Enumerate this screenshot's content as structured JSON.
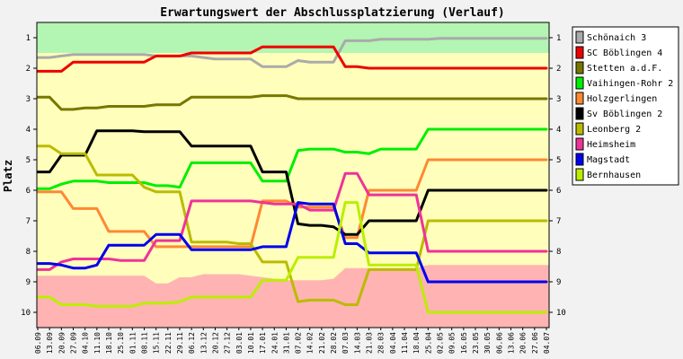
{
  "chart_data": {
    "type": "line",
    "title": "Erwartungswert der Abschlussplatzierung (Verlauf)",
    "ylabel": "Platz",
    "xlabel": "",
    "ylim": [
      0.5,
      10.5
    ],
    "y_inverted": true,
    "y_ticks": [
      "1",
      "2",
      "3",
      "4",
      "5",
      "6",
      "7",
      "8",
      "9",
      "10"
    ],
    "legend_position": "right",
    "grid": false,
    "x": [
      "06.09",
      "13.09",
      "20.09",
      "27.09",
      "04.10",
      "11.10",
      "18.10",
      "25.10",
      "01.11",
      "08.11",
      "15.11",
      "22.11",
      "29.11",
      "06.12",
      "13.12",
      "20.12",
      "27.12",
      "03.01",
      "10.01",
      "17.01",
      "24.01",
      "31.01",
      "07.02",
      "14.02",
      "21.02",
      "28.02",
      "07.03",
      "14.03",
      "21.03",
      "28.03",
      "04.04",
      "11.04",
      "18.04",
      "25.04",
      "02.05",
      "09.05",
      "16.05",
      "23.05",
      "30.05",
      "06.06",
      "13.06",
      "20.06",
      "27.06",
      "04.07"
    ],
    "bands": [
      {
        "color": "#b3f5b3",
        "lower": [
          1.5,
          1.5,
          1.5,
          1.5,
          1.5,
          1.5,
          1.5,
          1.5,
          1.5,
          1.5,
          1.5,
          1.5,
          1.5,
          1.5,
          1.5,
          1.5,
          1.5,
          1.5,
          1.5,
          1.5,
          1.5,
          1.5,
          1.5,
          1.5,
          1.5,
          1.5,
          1.5,
          1.5,
          1.5,
          1.5,
          1.5,
          1.5,
          1.5,
          1.5,
          1.5,
          1.5,
          1.5,
          1.5,
          1.5,
          1.5,
          1.5,
          1.5,
          1.5,
          1.5
        ]
      },
      {
        "color": "#ffb3b3",
        "upper": [
          8.8,
          8.8,
          8.8,
          8.8,
          8.8,
          8.8,
          8.8,
          8.8,
          8.8,
          8.8,
          9.05,
          9.05,
          8.85,
          8.85,
          8.75,
          8.75,
          8.75,
          8.75,
          8.8,
          8.85,
          8.9,
          8.95,
          8.95,
          8.95,
          8.95,
          8.9,
          8.55,
          8.55,
          8.55,
          8.55,
          8.55,
          8.55,
          8.55,
          8.45,
          8.45,
          8.45,
          8.45,
          8.45,
          8.45,
          8.45,
          8.45,
          8.45,
          8.45,
          8.45
        ]
      }
    ],
    "series": [
      {
        "name": "Schönaich 3",
        "color": "#aaaaaa",
        "values": [
          1.65,
          1.65,
          1.6,
          1.55,
          1.55,
          1.55,
          1.55,
          1.55,
          1.55,
          1.55,
          1.6,
          1.6,
          1.6,
          1.6,
          1.65,
          1.7,
          1.7,
          1.7,
          1.7,
          1.95,
          1.95,
          1.95,
          1.75,
          1.8,
          1.8,
          1.8,
          1.1,
          1.1,
          1.1,
          1.05,
          1.05,
          1.05,
          1.05,
          1.05,
          1.02,
          1.02,
          1.02,
          1.02,
          1.02,
          1.02,
          1.02,
          1.02,
          1.02,
          1.02
        ]
      },
      {
        "name": "SC Böblingen 4",
        "color": "#ee0000",
        "values": [
          2.1,
          2.1,
          2.1,
          1.8,
          1.8,
          1.8,
          1.8,
          1.8,
          1.8,
          1.8,
          1.6,
          1.6,
          1.6,
          1.5,
          1.5,
          1.5,
          1.5,
          1.5,
          1.5,
          1.3,
          1.3,
          1.3,
          1.3,
          1.3,
          1.3,
          1.3,
          1.95,
          1.95,
          2.0,
          2.0,
          2.0,
          2.0,
          2.0,
          2.0,
          2.0,
          2.0,
          2.0,
          2.0,
          2.0,
          2.0,
          2.0,
          2.0,
          2.0,
          2.0
        ]
      },
      {
        "name": "Stetten a.d.F.",
        "color": "#777700",
        "values": [
          2.95,
          2.95,
          3.35,
          3.35,
          3.3,
          3.3,
          3.25,
          3.25,
          3.25,
          3.25,
          3.2,
          3.2,
          3.2,
          2.95,
          2.95,
          2.95,
          2.95,
          2.95,
          2.95,
          2.9,
          2.9,
          2.9,
          3.0,
          3.0,
          3.0,
          3.0,
          3.0,
          3.0,
          3.0,
          3.0,
          3.0,
          3.0,
          3.0,
          3.0,
          3.0,
          3.0,
          3.0,
          3.0,
          3.0,
          3.0,
          3.0,
          3.0,
          3.0,
          3.0
        ]
      },
      {
        "name": "Vaihingen-Rohr 2",
        "color": "#00ee00",
        "values": [
          5.95,
          5.95,
          5.8,
          5.7,
          5.7,
          5.7,
          5.75,
          5.75,
          5.75,
          5.75,
          5.85,
          5.85,
          5.9,
          5.1,
          5.1,
          5.1,
          5.1,
          5.1,
          5.1,
          5.7,
          5.7,
          5.7,
          4.7,
          4.65,
          4.65,
          4.65,
          4.75,
          4.75,
          4.8,
          4.65,
          4.65,
          4.65,
          4.65,
          4.0,
          4.0,
          4.0,
          4.0,
          4.0,
          4.0,
          4.0,
          4.0,
          4.0,
          4.0,
          4.0
        ]
      },
      {
        "name": "Holzgerlingen",
        "color": "#ff8833",
        "values": [
          6.05,
          6.05,
          6.05,
          6.6,
          6.6,
          6.6,
          7.35,
          7.35,
          7.35,
          7.35,
          7.85,
          7.85,
          7.85,
          7.85,
          7.85,
          7.85,
          7.85,
          7.85,
          7.85,
          6.35,
          6.35,
          6.35,
          6.55,
          6.55,
          6.55,
          6.55,
          7.55,
          7.55,
          6.0,
          6.0,
          6.0,
          6.0,
          6.0,
          5.0,
          5.0,
          5.0,
          5.0,
          5.0,
          5.0,
          5.0,
          5.0,
          5.0,
          5.0,
          5.0
        ]
      },
      {
        "name": "Sv Böblingen 2",
        "color": "#000000",
        "values": [
          5.4,
          5.4,
          4.85,
          4.85,
          4.85,
          4.05,
          4.05,
          4.05,
          4.05,
          4.08,
          4.08,
          4.08,
          4.08,
          4.55,
          4.55,
          4.55,
          4.55,
          4.55,
          4.55,
          5.4,
          5.4,
          5.4,
          7.1,
          7.15,
          7.15,
          7.2,
          7.45,
          7.45,
          7.0,
          7.0,
          7.0,
          7.0,
          7.0,
          6.0,
          6.0,
          6.0,
          6.0,
          6.0,
          6.0,
          6.0,
          6.0,
          6.0,
          6.0,
          6.0
        ]
      },
      {
        "name": "Leonberg 2",
        "color": "#bbbb00",
        "values": [
          4.55,
          4.55,
          4.8,
          4.8,
          4.8,
          5.5,
          5.5,
          5.5,
          5.5,
          5.9,
          6.05,
          6.05,
          6.05,
          7.7,
          7.7,
          7.7,
          7.7,
          7.75,
          7.75,
          8.35,
          8.35,
          8.35,
          9.65,
          9.6,
          9.6,
          9.6,
          9.75,
          9.75,
          8.6,
          8.6,
          8.6,
          8.6,
          8.6,
          7.0,
          7.0,
          7.0,
          7.0,
          7.0,
          7.0,
          7.0,
          7.0,
          7.0,
          7.0,
          7.0
        ]
      },
      {
        "name": "Heimsheim",
        "color": "#ee3399",
        "values": [
          8.6,
          8.6,
          8.35,
          8.25,
          8.25,
          8.25,
          8.25,
          8.3,
          8.3,
          8.3,
          7.65,
          7.65,
          7.65,
          6.35,
          6.35,
          6.35,
          6.35,
          6.35,
          6.35,
          6.4,
          6.45,
          6.45,
          6.45,
          6.65,
          6.65,
          6.65,
          5.45,
          5.45,
          6.15,
          6.15,
          6.15,
          6.15,
          6.15,
          8.0,
          8.0,
          8.0,
          8.0,
          8.0,
          8.0,
          8.0,
          8.0,
          8.0,
          8.0,
          8.0
        ]
      },
      {
        "name": "Magstadt",
        "color": "#0000ee",
        "values": [
          8.4,
          8.4,
          8.45,
          8.55,
          8.55,
          8.45,
          7.8,
          7.8,
          7.8,
          7.8,
          7.45,
          7.45,
          7.45,
          7.95,
          7.95,
          7.95,
          7.95,
          7.95,
          7.95,
          7.85,
          7.85,
          7.85,
          6.4,
          6.45,
          6.45,
          6.45,
          7.75,
          7.75,
          8.05,
          8.05,
          8.05,
          8.05,
          8.05,
          9.0,
          9.0,
          9.0,
          9.0,
          9.0,
          9.0,
          9.0,
          9.0,
          9.0,
          9.0,
          9.0
        ]
      },
      {
        "name": "Bernhausen",
        "color": "#bbee00",
        "values": [
          9.5,
          9.5,
          9.75,
          9.75,
          9.75,
          9.8,
          9.8,
          9.8,
          9.8,
          9.7,
          9.7,
          9.7,
          9.65,
          9.5,
          9.5,
          9.5,
          9.5,
          9.5,
          9.5,
          8.95,
          8.95,
          8.95,
          8.2,
          8.2,
          8.2,
          8.2,
          6.4,
          6.4,
          8.45,
          8.45,
          8.45,
          8.45,
          8.45,
          10.0,
          10.0,
          10.0,
          10.0,
          10.0,
          10.0,
          10.0,
          10.0,
          10.0,
          10.0,
          10.0
        ]
      }
    ]
  }
}
